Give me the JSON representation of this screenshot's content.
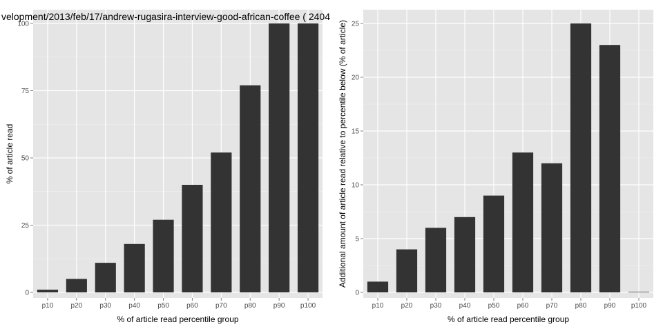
{
  "chart_data": [
    {
      "type": "bar",
      "title": "velopment/2013/feb/17/andrew-rugasira-interview-good-african-coffee ( 2404",
      "xlabel": "% of article read percentile group",
      "ylabel": "% of article read",
      "categories": [
        "p10",
        "p20",
        "p30",
        "p40",
        "p50",
        "p60",
        "p70",
        "p80",
        "p90",
        "p100"
      ],
      "values": [
        1,
        5,
        11,
        18,
        27,
        40,
        52,
        77,
        100,
        100
      ],
      "ylim": [
        0,
        100
      ],
      "yticks": [
        0,
        25,
        50,
        75,
        100
      ],
      "grid": true,
      "bar_color": "#333333",
      "panel_color": "#e5e5e5"
    },
    {
      "type": "bar",
      "title": "",
      "xlabel": "% of article read percentile group",
      "ylabel": "Additional amount of article read relative to percentile below (% of article)",
      "categories": [
        "p10",
        "p20",
        "p30",
        "p40",
        "p50",
        "p60",
        "p70",
        "p80",
        "p90",
        "p100"
      ],
      "values": [
        1,
        4,
        6,
        7,
        9,
        13,
        12,
        25,
        23,
        0
      ],
      "ylim": [
        0,
        25
      ],
      "yticks": [
        0,
        5,
        10,
        15,
        20,
        25
      ],
      "grid": true,
      "bar_color": "#333333",
      "panel_color": "#e5e5e5"
    }
  ]
}
